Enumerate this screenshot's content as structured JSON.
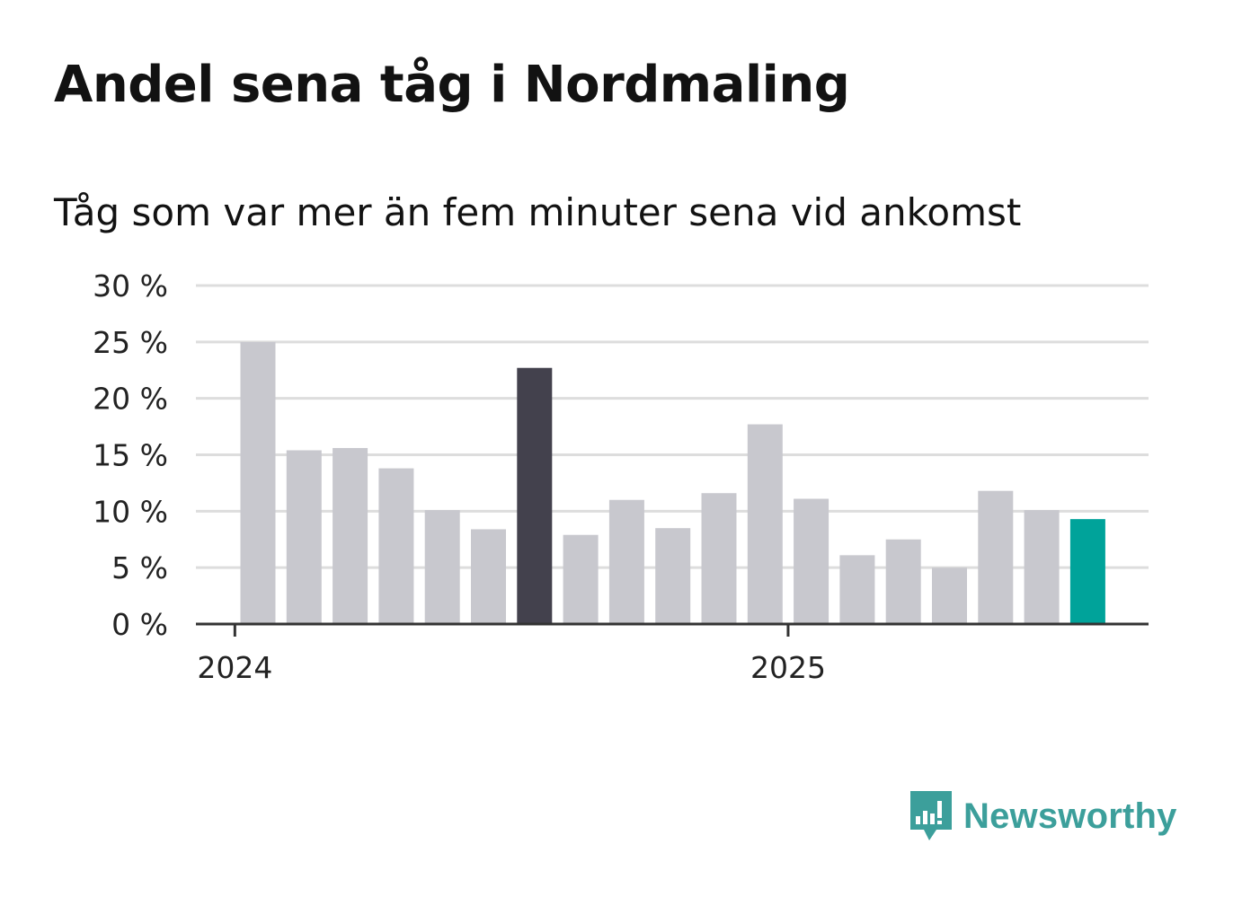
{
  "header": {
    "title": "Andel sena tåg i Nordmaling",
    "subtitle": "Tåg som var mer än fem minuter sena vid ankomst"
  },
  "brand": {
    "name": "Newsworthy",
    "logo_icon": "newsworthy-chart-icon",
    "color": "#3c9f9b"
  },
  "chart_data": {
    "type": "bar",
    "title": "Andel sena tåg i Nordmaling",
    "subtitle": "Tåg som var mer än fem minuter sena vid ankomst",
    "ylim": [
      0,
      30
    ],
    "yticks": [
      0,
      5,
      10,
      15,
      20,
      25,
      30
    ],
    "ytick_labels": [
      "0 %",
      "5 %",
      "10 %",
      "15 %",
      "20 %",
      "25 %",
      "30 %"
    ],
    "y_unit": "%",
    "grid": true,
    "x_tick_labels": [
      {
        "label": "2024",
        "position_index": -0.5
      },
      {
        "label": "2025",
        "position_index": 11.5
      }
    ],
    "colors": {
      "default": "#c8c8ce",
      "highlight": "#43414d",
      "latest": "#00a39a",
      "axis": "#333333",
      "grid": "#dddddd"
    },
    "values": [
      25.0,
      15.4,
      15.6,
      13.8,
      10.1,
      8.4,
      22.7,
      7.9,
      11.0,
      8.5,
      11.6,
      17.7,
      11.1,
      6.1,
      7.5,
      5.0,
      11.8,
      10.1,
      9.3
    ],
    "styles": [
      "default",
      "default",
      "default",
      "default",
      "default",
      "default",
      "highlight",
      "default",
      "default",
      "default",
      "default",
      "default",
      "default",
      "default",
      "default",
      "default",
      "default",
      "default",
      "latest"
    ]
  }
}
